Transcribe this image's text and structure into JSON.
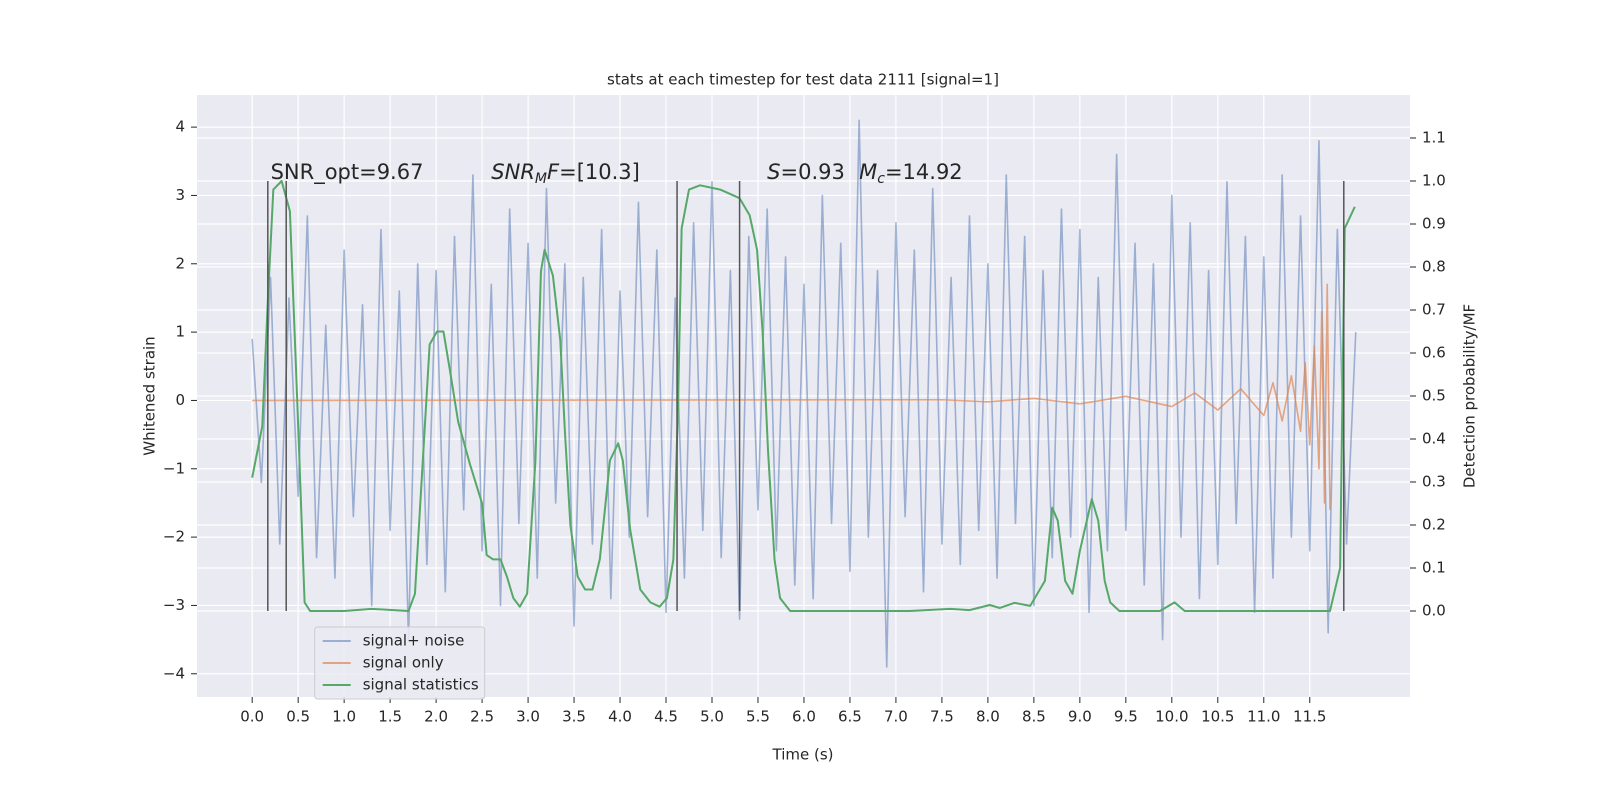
{
  "chart_data": {
    "type": "line",
    "title": "stats at each timestep for test data 2111 [signal=1]",
    "xlabel": "Time (s)",
    "ylabel": "Whitened strain",
    "y2label": "Detection probability/MF",
    "xlim": [
      -0.6,
      12.59
    ],
    "ylim": [
      -4.34,
      4.47
    ],
    "y2lim": [
      -0.2,
      1.2
    ],
    "grid": true,
    "background": "#eaeaf2",
    "legend": "lower left",
    "xticks": [
      {
        "value": 0,
        "label": "0.0"
      },
      0.5,
      {
        "value": 1,
        "label": "1.0"
      },
      1.5,
      {
        "value": 2,
        "label": "2.0"
      },
      2.5,
      {
        "value": 3,
        "label": "3.0"
      },
      3.5,
      {
        "value": 4,
        "label": "4.0"
      },
      4.5,
      {
        "value": 5,
        "label": "5.0"
      },
      5.5,
      {
        "value": 6,
        "label": "6.0"
      },
      6.5,
      {
        "value": 7,
        "label": "7.0"
      },
      7.5,
      {
        "value": 8,
        "label": "8.0"
      },
      8.5,
      {
        "value": 9,
        "label": "9.0"
      },
      9.5,
      {
        "value": 10,
        "label": "10.0"
      },
      10.5,
      {
        "value": 11,
        "label": "11.0"
      },
      11.5
    ],
    "yticks": [
      {
        "value": -4,
        "label": "−4"
      },
      {
        "value": -3,
        "label": "−3"
      },
      {
        "value": -2,
        "label": "−2"
      },
      {
        "value": -1,
        "label": "−1"
      },
      0,
      1,
      2,
      3,
      4
    ],
    "y2ticks": [
      {
        "value": 0,
        "label": "0.0"
      },
      0.1,
      0.2,
      0.3,
      0.4,
      0.5,
      0.6,
      0.7,
      0.8,
      0.9,
      {
        "value": 1,
        "label": "1.0"
      },
      1.1
    ],
    "vlines": {
      "x": [
        0.17,
        0.37,
        4.62,
        5.3,
        11.87
      ],
      "y2range": [
        0,
        1
      ],
      "color": "#555555"
    },
    "annotations": [
      {
        "x": 0.2,
        "y": 3.33,
        "parts": [
          {
            "text": "SNR_opt=9.67"
          }
        ]
      },
      {
        "x": 2.6,
        "y": 3.33,
        "parts": [
          {
            "text": "SNR",
            "style": "italic"
          },
          {
            "text": "M",
            "style": "sub"
          },
          {
            "text": "F",
            "style": "italic"
          },
          {
            "text": "=[10.3]"
          }
        ]
      },
      {
        "x": 5.6,
        "y": 3.33,
        "parts": [
          {
            "text": "S",
            "style": "italic"
          },
          {
            "text": "=0.93"
          }
        ]
      },
      {
        "x": 6.6,
        "y": 3.33,
        "parts": [
          {
            "text": "M",
            "style": "italic"
          },
          {
            "text": "c",
            "style": "sub"
          },
          {
            "text": "=14.92"
          }
        ]
      }
    ],
    "series": [
      {
        "name": "signal+ noise",
        "color": "#4c72b0",
        "opacity": 0.5,
        "x": [
          0,
          0.1,
          0.2,
          0.3,
          0.4,
          0.5,
          0.6,
          0.7,
          0.8,
          0.9,
          1,
          1.1,
          1.2,
          1.3,
          1.4,
          1.5,
          1.6,
          1.7,
          1.8,
          1.9,
          2,
          2.1,
          2.2,
          2.3,
          2.4,
          2.5,
          2.6,
          2.7,
          2.8,
          2.9,
          3,
          3.1,
          3.2,
          3.3,
          3.4,
          3.5,
          3.6,
          3.7,
          3.8,
          3.9,
          4,
          4.1,
          4.2,
          4.3,
          4.4,
          4.5,
          4.6,
          4.7,
          4.8,
          4.9,
          5,
          5.1,
          5.2,
          5.3,
          5.4,
          5.5,
          5.6,
          5.7,
          5.8,
          5.9,
          6,
          6.1,
          6.2,
          6.3,
          6.4,
          6.5,
          6.6,
          6.7,
          6.8,
          6.9,
          7,
          7.1,
          7.2,
          7.3,
          7.4,
          7.5,
          7.6,
          7.7,
          7.8,
          7.9,
          8,
          8.1,
          8.2,
          8.3,
          8.4,
          8.5,
          8.6,
          8.7,
          8.8,
          8.9,
          9,
          9.1,
          9.2,
          9.3,
          9.4,
          9.5,
          9.6,
          9.7,
          9.8,
          9.9,
          10,
          10.1,
          10.2,
          10.3,
          10.4,
          10.5,
          10.6,
          10.7,
          10.8,
          10.9,
          11,
          11.1,
          11.2,
          11.3,
          11.4,
          11.5,
          11.6,
          11.7,
          11.8,
          11.9,
          12
        ],
        "values": [
          0.9,
          -1.2,
          1.8,
          -2.1,
          1.5,
          -1.4,
          2.7,
          -2.3,
          1.1,
          -2.6,
          2.2,
          -1.7,
          1.4,
          -3.0,
          2.5,
          -1.9,
          1.6,
          -3.5,
          2.0,
          -2.4,
          1.9,
          -2.8,
          2.4,
          -1.6,
          3.3,
          -2.2,
          1.7,
          -3.0,
          2.8,
          -1.8,
          2.3,
          -2.6,
          3.1,
          -1.5,
          2.0,
          -3.3,
          1.8,
          -2.1,
          2.5,
          -2.9,
          1.6,
          -2.0,
          2.9,
          -1.7,
          2.2,
          -3.1,
          1.5,
          -2.6,
          2.6,
          -1.9,
          3.2,
          -2.3,
          1.9,
          -3.2,
          2.4,
          -1.6,
          2.8,
          -2.2,
          2.1,
          -2.7,
          1.7,
          -2.9,
          3.0,
          -1.8,
          2.3,
          -2.5,
          4.1,
          -2.0,
          1.9,
          -3.9,
          2.6,
          -1.7,
          2.2,
          -2.8,
          3.1,
          -2.1,
          1.8,
          -2.4,
          2.7,
          -1.9,
          2.0,
          -2.6,
          3.3,
          -1.8,
          2.4,
          -3.0,
          1.9,
          -2.3,
          2.8,
          -2.0,
          2.5,
          -3.1,
          1.8,
          -2.2,
          3.6,
          -1.9,
          2.3,
          -2.7,
          2.0,
          -3.5,
          3.0,
          -2.0,
          2.6,
          -2.9,
          1.9,
          -2.4,
          3.2,
          -1.8,
          2.4,
          -3.1,
          2.1,
          -2.6,
          3.3,
          -2.0,
          2.7,
          -2.2,
          3.8,
          -3.4,
          2.5,
          -2.1,
          1.0
        ]
      },
      {
        "name": "signal only",
        "color": "#dd8452",
        "opacity": 0.7,
        "x": [
          0,
          7.5,
          8.0,
          8.5,
          9.0,
          9.5,
          10.0,
          10.25,
          10.5,
          10.75,
          11.0,
          11.1,
          11.2,
          11.3,
          11.4,
          11.45,
          11.5,
          11.55,
          11.6,
          11.63,
          11.66,
          11.69,
          11.72
        ],
        "values": [
          0,
          0.01,
          -0.02,
          0.03,
          -0.05,
          0.06,
          -0.09,
          0.11,
          -0.14,
          0.17,
          -0.22,
          0.26,
          -0.3,
          0.36,
          -0.45,
          0.55,
          -0.65,
          0.8,
          -1.0,
          1.3,
          -1.5,
          1.7,
          -1.6
        ]
      },
      {
        "name": "signal statistics",
        "color": "#55a868",
        "opacity": 1,
        "axis": "y2",
        "x": [
          0,
          0.11,
          0.17,
          0.23,
          0.32,
          0.41,
          0.49,
          0.57,
          0.63,
          1.0,
          1.3,
          1.7,
          1.77,
          1.93,
          2.01,
          2.08,
          2.15,
          2.24,
          2.37,
          2.5,
          2.55,
          2.62,
          2.7,
          2.77,
          2.84,
          2.91,
          2.99,
          3.08,
          3.14,
          3.18,
          3.27,
          3.35,
          3.4,
          3.46,
          3.54,
          3.62,
          3.7,
          3.78,
          3.89,
          3.98,
          4.03,
          4.11,
          4.22,
          4.33,
          4.43,
          4.51,
          4.58,
          4.63,
          4.67,
          4.75,
          4.87,
          5.09,
          5.3,
          5.41,
          5.49,
          5.55,
          5.61,
          5.68,
          5.74,
          5.85,
          6.28,
          7.15,
          7.59,
          7.8,
          8.02,
          8.13,
          8.29,
          8.46,
          8.62,
          8.7,
          8.76,
          8.84,
          8.92,
          9.0,
          9.13,
          9.2,
          9.27,
          9.33,
          9.43,
          9.87,
          10.03,
          10.14,
          10.3,
          10.96,
          11.39,
          11.72,
          11.83,
          11.88,
          11.99
        ],
        "values": [
          0.31,
          0.43,
          0.72,
          0.98,
          1.0,
          0.93,
          0.49,
          0.02,
          0,
          0,
          0.005,
          0,
          0.04,
          0.62,
          0.65,
          0.65,
          0.56,
          0.44,
          0.34,
          0.25,
          0.13,
          0.12,
          0.12,
          0.08,
          0.03,
          0.01,
          0.04,
          0.35,
          0.79,
          0.84,
          0.78,
          0.63,
          0.42,
          0.2,
          0.08,
          0.05,
          0.05,
          0.12,
          0.35,
          0.39,
          0.35,
          0.19,
          0.05,
          0.02,
          0.01,
          0.03,
          0.12,
          0.47,
          0.89,
          0.98,
          0.99,
          0.98,
          0.96,
          0.92,
          0.84,
          0.65,
          0.37,
          0.12,
          0.03,
          0,
          0,
          0,
          0.005,
          0.002,
          0.014,
          0.007,
          0.019,
          0.012,
          0.07,
          0.24,
          0.21,
          0.07,
          0.04,
          0.14,
          0.26,
          0.21,
          0.07,
          0.02,
          0,
          0,
          0.02,
          0,
          0,
          0,
          0,
          0,
          0.1,
          0.89,
          0.94
        ]
      }
    ]
  }
}
